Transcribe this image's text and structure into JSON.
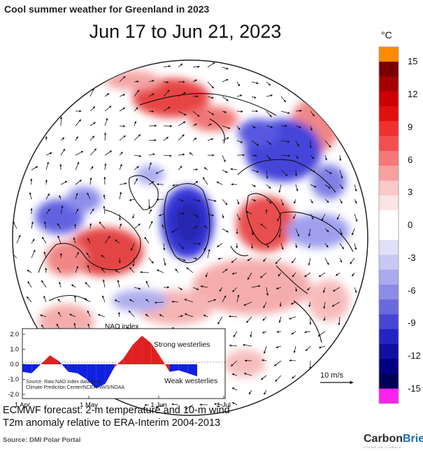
{
  "header": {
    "title": "Cool summer weather for Greenland in 2023",
    "date_range": "Jun 17 to Jun 21, 2023"
  },
  "colorbar": {
    "unit": "°C",
    "ticks": [
      "15",
      "12",
      "9",
      "6",
      "3",
      "0",
      "-3",
      "-6",
      "-9",
      "-12",
      "-15"
    ],
    "colors": [
      "#ff8c00",
      "#7a0000",
      "#a50000",
      "#cc0000",
      "#e01010",
      "#f03030",
      "#f25050",
      "#f47878",
      "#f6a0a0",
      "#f9c8c8",
      "#fde4e4",
      "#ffffff",
      "#ffffff",
      "#e0e0fa",
      "#c8c8f4",
      "#aaaaee",
      "#8c8ce6",
      "#6a6add",
      "#4646d2",
      "#2424c2",
      "#1010a0",
      "#000080",
      "#000058",
      "#ff22ee"
    ]
  },
  "nao_inset": {
    "title": "NAO index",
    "y_ticks": [
      "2.0",
      "1.0",
      "0.0",
      "-1.0",
      "-2.0"
    ],
    "x_ticks": [
      "1 Apr",
      "1 May",
      "1 Jun",
      "1 Jul"
    ],
    "strong_label": "Strong westerlies",
    "weak_label": "Weak westerlies",
    "source_note_1": "Source: Raw NAO index data from",
    "source_note_2": "Climate Prediction Center/NCEP/NWS/NOAA"
  },
  "chart_data": {
    "type": "area",
    "title": "NAO index",
    "x": [
      "Apr 1",
      "Apr 5",
      "Apr 10",
      "Apr 15",
      "Apr 20",
      "Apr 25",
      "Apr 30",
      "May 5",
      "May 10",
      "May 15",
      "May 20",
      "May 25",
      "May 30",
      "Jun 1",
      "Jun 5",
      "Jun 10",
      "Jun 15",
      "Jun 20",
      "Jun 25",
      "Jun 30"
    ],
    "values": [
      -0.5,
      -0.6,
      0.0,
      0.6,
      0.2,
      -0.5,
      -0.6,
      -1.0,
      -1.6,
      -1.3,
      -0.2,
      0.4,
      1.3,
      1.9,
      1.4,
      0.5,
      -0.5,
      -0.4,
      -0.6,
      -0.8
    ],
    "ylim": [
      -2.0,
      2.0
    ],
    "colors": {
      "positive": "#e02020",
      "negative": "#1020e0"
    }
  },
  "wind_legend": {
    "label": "10 m/s"
  },
  "caption": {
    "line1": "ECMWF forecast: 2-m temperature and 10-m wind",
    "line2": "T2m anomaly relative to ERA-Interim 2004-2013"
  },
  "source": "Source: DMI Polar Portal",
  "brand": {
    "name_a": "Carbon",
    "name_b": "Brief",
    "tagline": "CLEAR ON CLIMATE"
  }
}
